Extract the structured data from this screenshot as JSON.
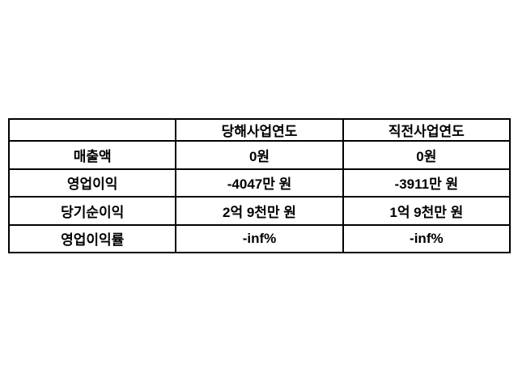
{
  "chart_data": {
    "type": "table",
    "title": "",
    "columns": [
      "",
      "당해사업연도",
      "직전사업연도"
    ],
    "rows": [
      {
        "label": "매출액",
        "values": [
          "0원",
          "0원"
        ]
      },
      {
        "label": "영업이익",
        "values": [
          "-4047만 원",
          "-3911만 원"
        ]
      },
      {
        "label": "당기순이익",
        "values": [
          "2억 9천만 원",
          "1억 9천만 원"
        ]
      },
      {
        "label": "영업이익률",
        "values": [
          "-inf%",
          "-inf%"
        ]
      }
    ],
    "layout": {
      "grid": "on",
      "equal_column_widths": true,
      "cell_alignment": "center"
    },
    "colors": {
      "border": "#000000",
      "text": "#000000",
      "background": "#ffffff"
    }
  }
}
